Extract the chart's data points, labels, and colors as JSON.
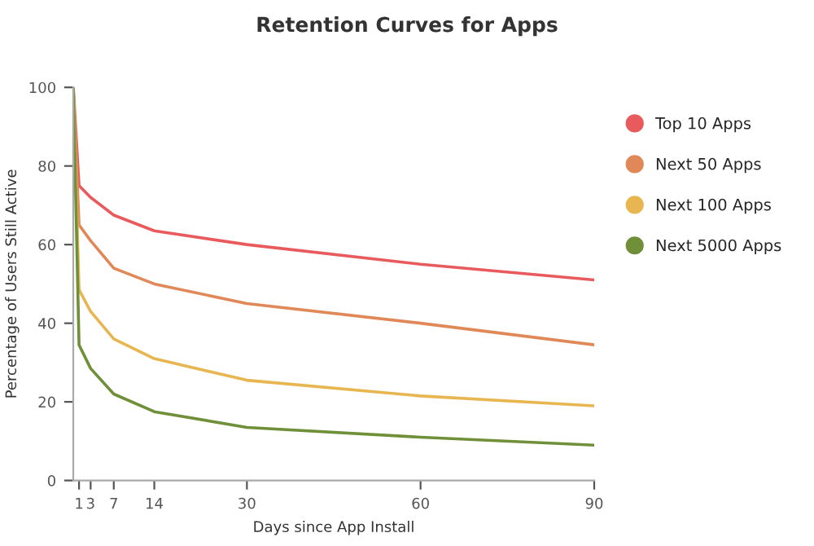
{
  "chart_data": {
    "type": "line",
    "title": "Retention Curves for Apps",
    "xlabel": "Days since App Install",
    "ylabel": "Percentage of Users Still Active",
    "x": [
      0,
      1,
      3,
      7,
      14,
      30,
      60,
      90
    ],
    "series": [
      {
        "name": "Top 10 Apps",
        "color": "#e85a5c",
        "values": [
          100,
          75,
          72,
          67.5,
          63.5,
          60,
          55,
          51
        ]
      },
      {
        "name": "Next 50 Apps",
        "color": "#e08858",
        "values": [
          100,
          65,
          61,
          54,
          50,
          45,
          40,
          34.5
        ]
      },
      {
        "name": "Next 100 Apps",
        "color": "#e8b650",
        "values": [
          100,
          48.5,
          43,
          36,
          31,
          25.5,
          21.5,
          19
        ]
      },
      {
        "name": "Next 5000 Apps",
        "color": "#6f9038",
        "values": [
          100,
          34.5,
          28.5,
          22,
          17.5,
          13.5,
          11,
          9
        ]
      }
    ],
    "xlim": [
      0,
      90
    ],
    "xticks": [
      1,
      3,
      7,
      14,
      30,
      60,
      90
    ],
    "ylim": [
      0,
      100
    ],
    "yticks": [
      0,
      20,
      40,
      60,
      80,
      100
    ],
    "grid": false,
    "legend": "right",
    "marker": "none",
    "line_style": "solid"
  }
}
